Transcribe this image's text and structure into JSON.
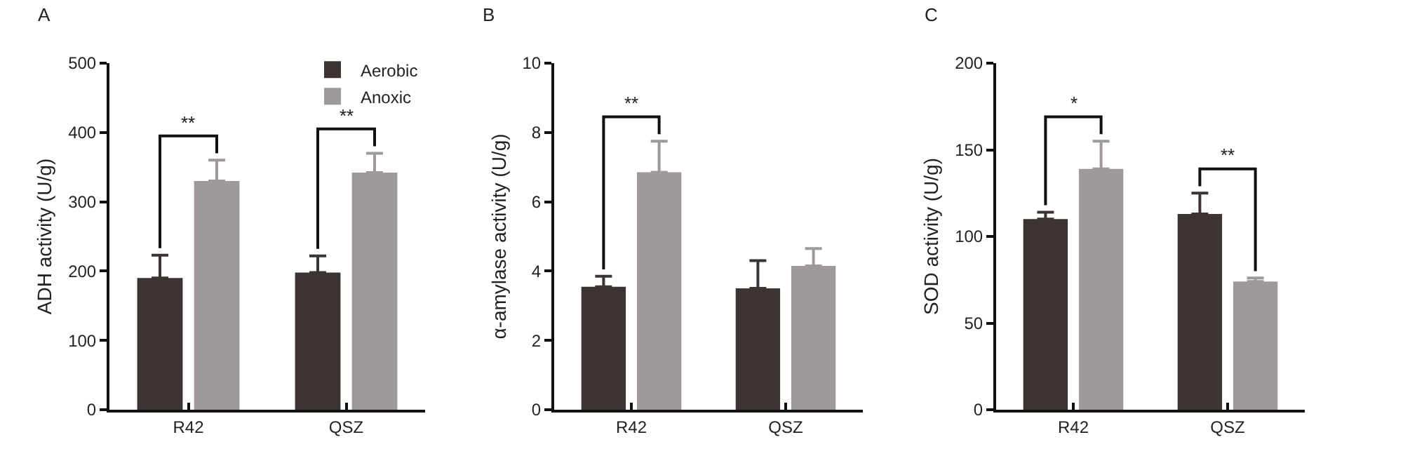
{
  "chart_data": [
    {
      "type": "bar",
      "title": "A",
      "ylabel": "ADH activity (U/g)",
      "categories": [
        "R42",
        "QSZ"
      ],
      "ylim": [
        0,
        500
      ],
      "yticks": [
        0,
        100,
        200,
        300,
        400,
        500
      ],
      "grid": false,
      "legend": "top right",
      "series": [
        {
          "name": "Aerobic",
          "color": "#3b3432",
          "values": [
            190,
            198
          ],
          "errors": [
            [
              190,
              223
            ],
            [
              198,
              222
            ]
          ]
        },
        {
          "name": "Anoxic",
          "color": "#a09999",
          "values": [
            330,
            342
          ],
          "errors": [
            [
              330,
              360
            ],
            [
              342,
              370
            ]
          ]
        }
      ],
      "annotations": [
        "**",
        "**"
      ]
    },
    {
      "type": "bar",
      "title": "B",
      "ylabel": "α-amylase activity (U/g)",
      "categories": [
        "R42",
        "QSZ"
      ],
      "ylim": [
        0,
        10
      ],
      "yticks": [
        0,
        2,
        4,
        6,
        8,
        10
      ],
      "grid": false,
      "series": [
        {
          "color": "#3b3432",
          "values": [
            3.55,
            3.5
          ],
          "errors": [
            [
              3.55,
              3.85
            ],
            [
              3.5,
              4.3
            ]
          ]
        },
        {
          "color": "#a09999",
          "values": [
            6.85,
            4.15
          ],
          "errors": [
            [
              6.85,
              7.75
            ],
            [
              4.15,
              4.65
            ]
          ]
        }
      ],
      "annotations": [
        "**"
      ]
    },
    {
      "type": "bar",
      "title": "C",
      "ylabel": "SOD activity (U/g)",
      "categories": [
        "R42",
        "QSZ"
      ],
      "ylim": [
        0,
        200
      ],
      "yticks": [
        0,
        50,
        100,
        150,
        200
      ],
      "grid": false,
      "series": [
        {
          "color": "#3b3432",
          "values": [
            110,
            113
          ],
          "errors": [
            [
              110,
              114
            ],
            [
              113,
              125
            ]
          ]
        },
        {
          "color": "#a09999",
          "values": [
            139,
            74
          ],
          "errors": [
            [
              139,
              155
            ],
            [
              74,
              76
            ]
          ]
        }
      ],
      "annotations": [
        "*",
        "**"
      ]
    }
  ]
}
